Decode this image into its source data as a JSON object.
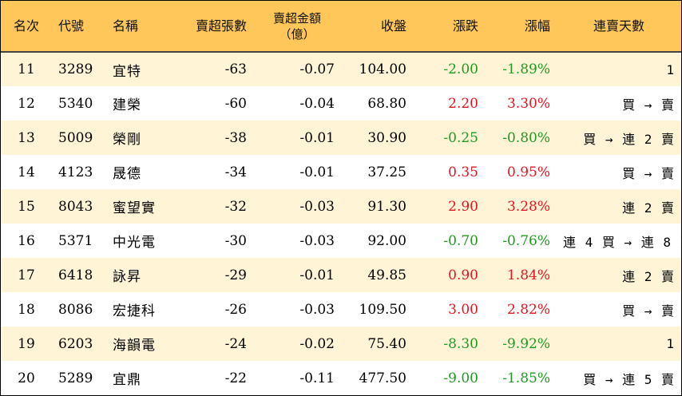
{
  "header": {
    "rank": "名次",
    "code": "代號",
    "name": "名稱",
    "net_sell_lots": "賣超張數",
    "net_sell_amount_line1": "賣超金額",
    "net_sell_amount_line2": "（億）",
    "close": "收盤",
    "change": "漲跌",
    "pct": "漲幅",
    "streak": "連賣天數"
  },
  "colors": {
    "header_bg": "#ffc65a",
    "stripe_bg": "#fff4d6",
    "up": "#e6141e",
    "down": "#1e9a1e"
  },
  "rows": [
    {
      "rank": "11",
      "code": "3289",
      "name": "宜特",
      "lots": "-63",
      "amount": "-0.07",
      "close": "104.00",
      "change": "-2.00",
      "pct": "-1.89%",
      "dir": "down",
      "streak": "1"
    },
    {
      "rank": "12",
      "code": "5340",
      "name": "建榮",
      "lots": "-60",
      "amount": "-0.04",
      "close": "68.80",
      "change": "2.20",
      "pct": "3.30%",
      "dir": "up",
      "streak": "買 → 賣"
    },
    {
      "rank": "13",
      "code": "5009",
      "name": "榮剛",
      "lots": "-38",
      "amount": "-0.01",
      "close": "30.90",
      "change": "-0.25",
      "pct": "-0.80%",
      "dir": "down",
      "streak": "買 → 連 2 賣"
    },
    {
      "rank": "14",
      "code": "4123",
      "name": "晟德",
      "lots": "-34",
      "amount": "-0.01",
      "close": "37.25",
      "change": "0.35",
      "pct": "0.95%",
      "dir": "up",
      "streak": "買 → 賣"
    },
    {
      "rank": "15",
      "code": "8043",
      "name": "蜜望實",
      "lots": "-32",
      "amount": "-0.03",
      "close": "91.30",
      "change": "2.90",
      "pct": "3.28%",
      "dir": "up",
      "streak": "連 2 賣"
    },
    {
      "rank": "16",
      "code": "5371",
      "name": "中光電",
      "lots": "-30",
      "amount": "-0.03",
      "close": "92.00",
      "change": "-0.70",
      "pct": "-0.76%",
      "dir": "down",
      "streak": "連 4 買 → 連 8 賣"
    },
    {
      "rank": "17",
      "code": "6418",
      "name": "詠昇",
      "lots": "-29",
      "amount": "-0.01",
      "close": "49.85",
      "change": "0.90",
      "pct": "1.84%",
      "dir": "up",
      "streak": "連 2 賣"
    },
    {
      "rank": "18",
      "code": "8086",
      "name": "宏捷科",
      "lots": "-26",
      "amount": "-0.03",
      "close": "109.50",
      "change": "3.00",
      "pct": "2.82%",
      "dir": "up",
      "streak": "買 → 賣"
    },
    {
      "rank": "19",
      "code": "6203",
      "name": "海韻電",
      "lots": "-24",
      "amount": "-0.02",
      "close": "75.40",
      "change": "-8.30",
      "pct": "-9.92%",
      "dir": "down",
      "streak": "1"
    },
    {
      "rank": "20",
      "code": "5289",
      "name": "宜鼎",
      "lots": "-22",
      "amount": "-0.11",
      "close": "477.50",
      "change": "-9.00",
      "pct": "-1.85%",
      "dir": "down",
      "streak": "買 → 連 5 賣"
    }
  ]
}
